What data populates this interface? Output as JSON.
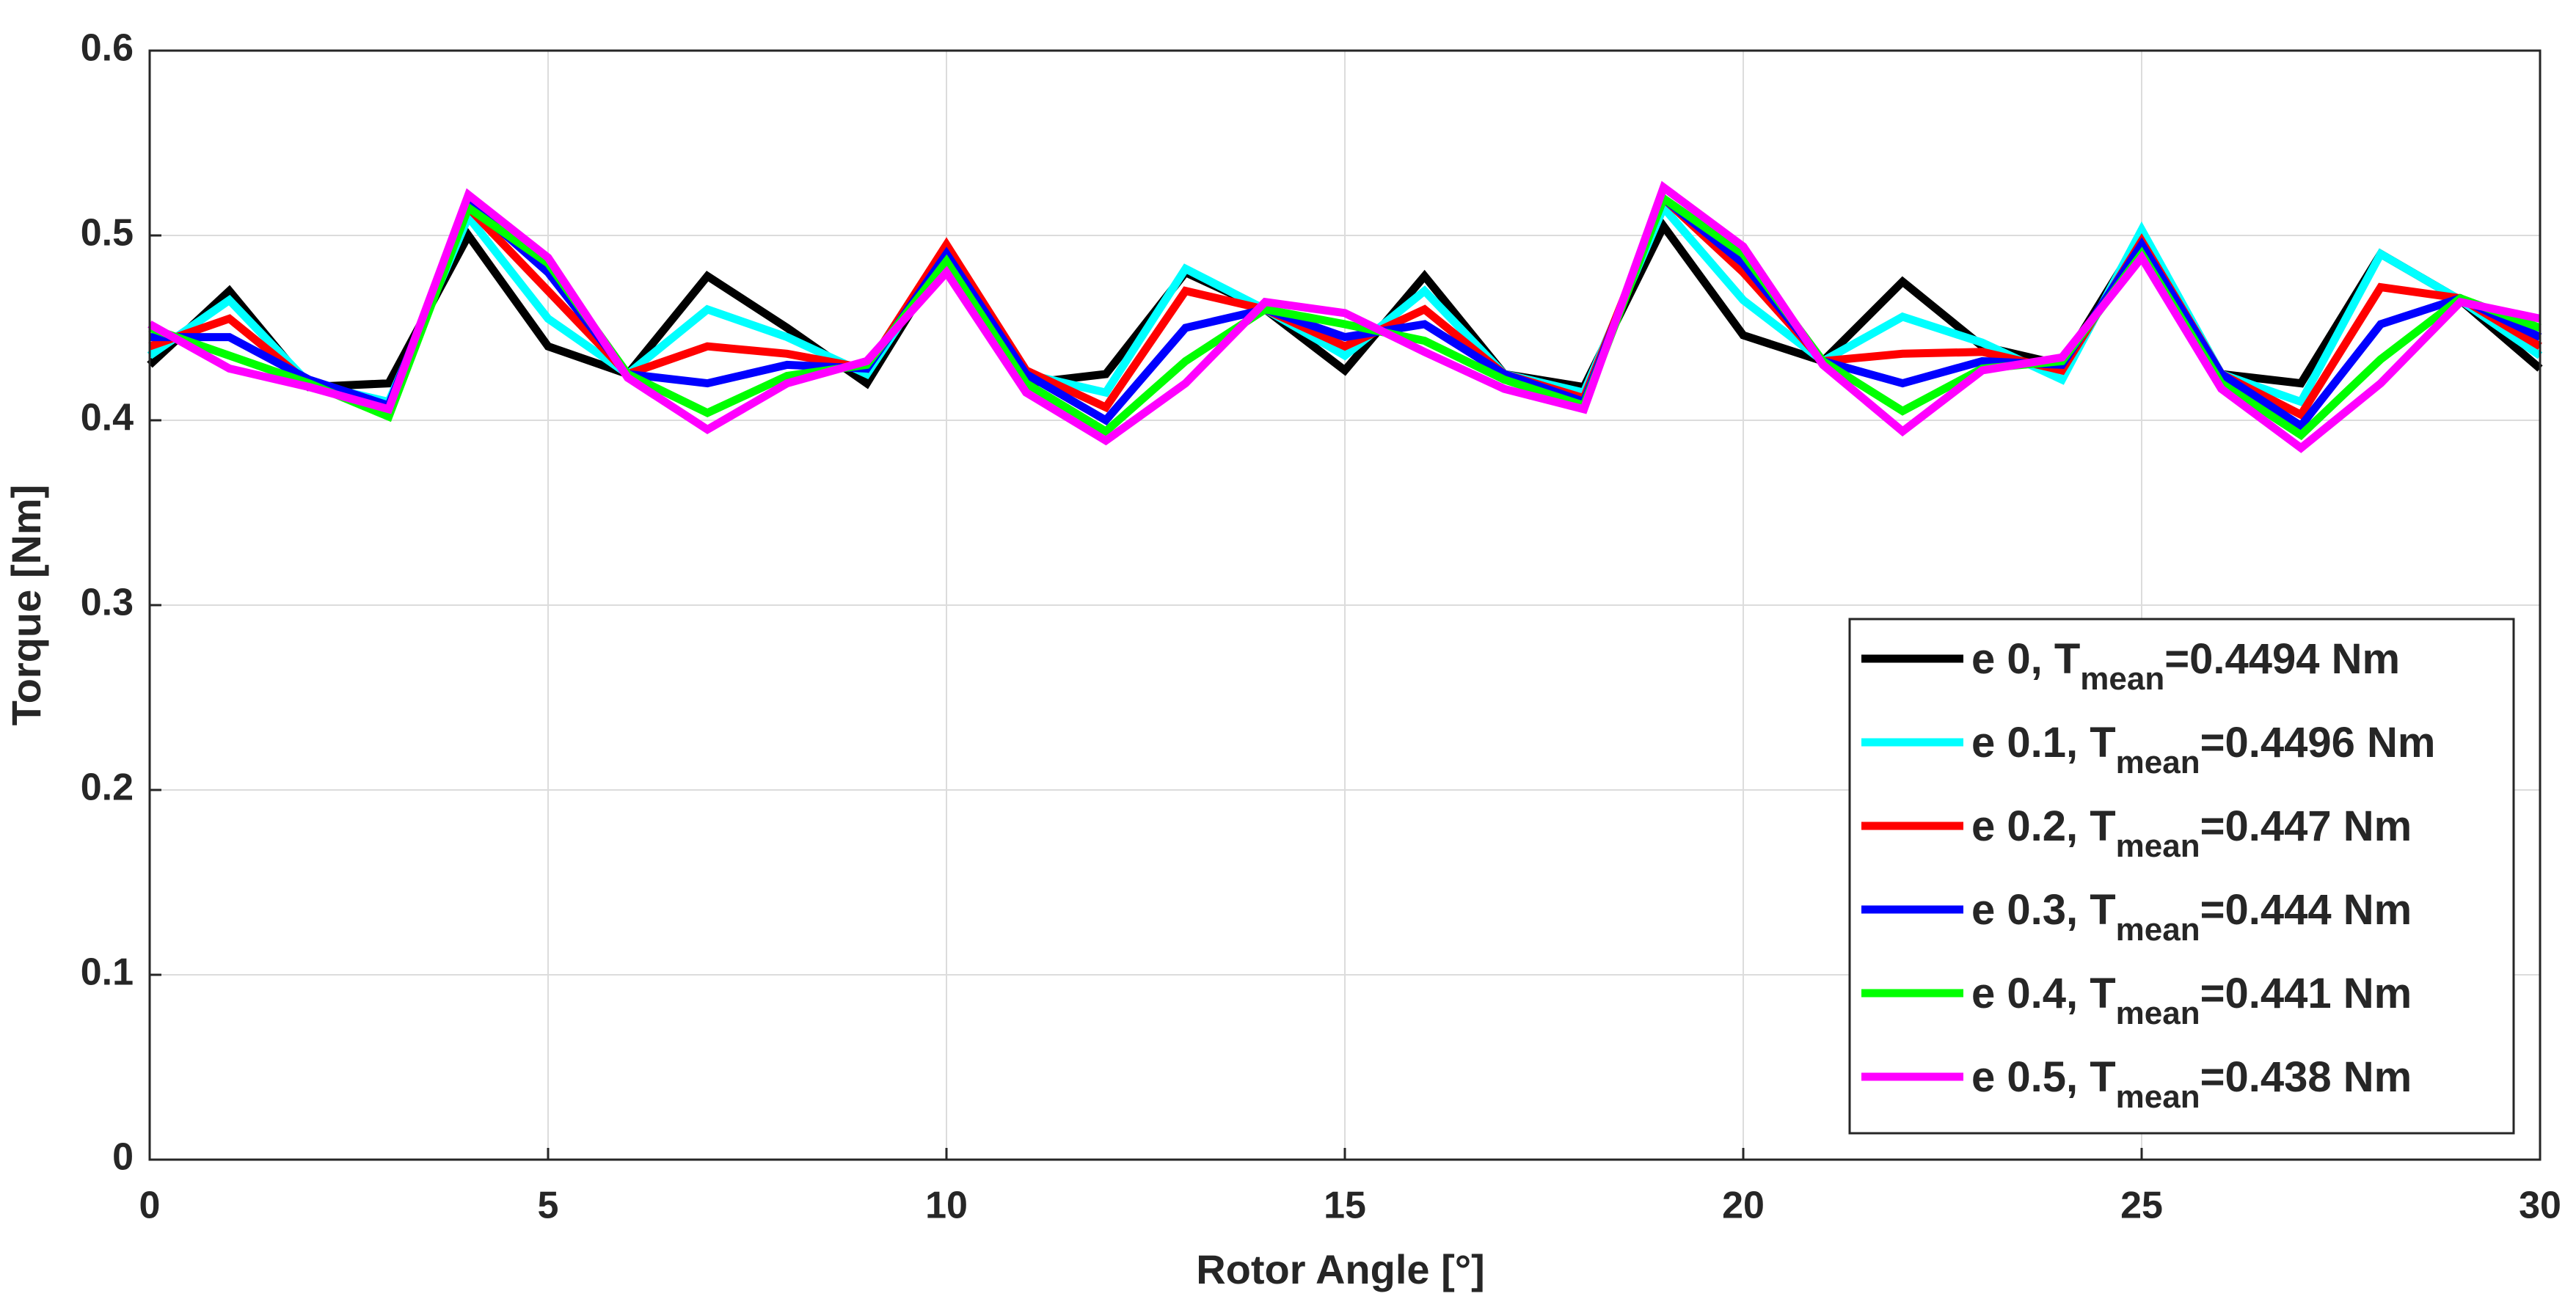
{
  "chart_data": {
    "type": "line",
    "x_label": "Rotor Angle [°]",
    "y_label": "Torque [Nm]",
    "x": [
      0,
      1,
      2,
      3,
      4,
      5,
      6,
      7,
      8,
      9,
      10,
      11,
      12,
      13,
      14,
      15,
      16,
      17,
      18,
      19,
      20,
      21,
      22,
      23,
      24,
      25,
      26,
      27,
      28,
      29,
      30
    ],
    "xlim": [
      0,
      30
    ],
    "xticks": [
      0,
      5,
      10,
      15,
      20,
      25,
      30
    ],
    "ylim": [
      0,
      0.6
    ],
    "yticks": [
      0,
      0.1,
      0.2,
      0.3,
      0.4,
      0.5,
      0.6
    ],
    "grid": true,
    "legend_position": "lower right",
    "series": [
      {
        "name": "e 0, T",
        "name_sub": "mean",
        "name_suffix": "=0.4494 Nm",
        "color": "#000000",
        "values": [
          0.43,
          0.47,
          0.418,
          0.42,
          0.5,
          0.44,
          0.425,
          0.478,
          0.45,
          0.42,
          0.49,
          0.42,
          0.425,
          0.48,
          0.46,
          0.427,
          0.478,
          0.425,
          0.418,
          0.505,
          0.446,
          0.432,
          0.475,
          0.44,
          0.43,
          0.5,
          0.425,
          0.42,
          0.49,
          0.465,
          0.428
        ]
      },
      {
        "name": "e 0.1, T",
        "name_sub": "mean",
        "name_suffix": "=0.4496 Nm",
        "color": "#00ffff",
        "values": [
          0.435,
          0.465,
          0.42,
          0.41,
          0.51,
          0.455,
          0.425,
          0.46,
          0.445,
          0.425,
          0.49,
          0.425,
          0.415,
          0.482,
          0.46,
          0.435,
          0.47,
          0.425,
          0.415,
          0.515,
          0.465,
          0.432,
          0.456,
          0.442,
          0.422,
          0.503,
          0.425,
          0.41,
          0.49,
          0.465,
          0.435
        ]
      },
      {
        "name": "e 0.2, T",
        "name_sub": "mean",
        "name_suffix": "=0.447 Nm",
        "color": "#ff0000",
        "values": [
          0.44,
          0.455,
          0.42,
          0.408,
          0.515,
          0.47,
          0.425,
          0.44,
          0.436,
          0.428,
          0.495,
          0.427,
          0.407,
          0.47,
          0.46,
          0.44,
          0.46,
          0.425,
          0.412,
          0.52,
          0.48,
          0.432,
          0.436,
          0.437,
          0.427,
          0.497,
          0.425,
          0.403,
          0.472,
          0.466,
          0.44
        ]
      },
      {
        "name": "e 0.3, T",
        "name_sub": "mean",
        "name_suffix": "=0.444 Nm",
        "color": "#0000ff",
        "values": [
          0.445,
          0.445,
          0.422,
          0.408,
          0.518,
          0.48,
          0.425,
          0.42,
          0.43,
          0.428,
          0.49,
          0.425,
          0.4,
          0.45,
          0.46,
          0.445,
          0.452,
          0.425,
          0.41,
          0.52,
          0.485,
          0.432,
          0.42,
          0.432,
          0.43,
          0.495,
          0.425,
          0.397,
          0.452,
          0.466,
          0.445
        ]
      },
      {
        "name": "e 0.4, T",
        "name_sub": "mean",
        "name_suffix": "=0.441 Nm",
        "color": "#00ff00",
        "values": [
          0.45,
          0.435,
          0.42,
          0.402,
          0.515,
          0.485,
          0.425,
          0.404,
          0.424,
          0.43,
          0.486,
          0.42,
          0.394,
          0.432,
          0.46,
          0.452,
          0.443,
          0.422,
          0.408,
          0.52,
          0.49,
          0.432,
          0.405,
          0.428,
          0.432,
          0.49,
          0.42,
          0.392,
          0.433,
          0.466,
          0.45
        ]
      },
      {
        "name": "e 0.5, T",
        "name_sub": "mean",
        "name_suffix": "=0.438 Nm",
        "color": "#ff00ff",
        "values": [
          0.452,
          0.428,
          0.418,
          0.406,
          0.522,
          0.488,
          0.423,
          0.395,
          0.42,
          0.432,
          0.48,
          0.415,
          0.389,
          0.42,
          0.464,
          0.458,
          0.437,
          0.417,
          0.406,
          0.526,
          0.494,
          0.43,
          0.394,
          0.427,
          0.434,
          0.488,
          0.417,
          0.385,
          0.42,
          0.464,
          0.455
        ]
      }
    ]
  }
}
